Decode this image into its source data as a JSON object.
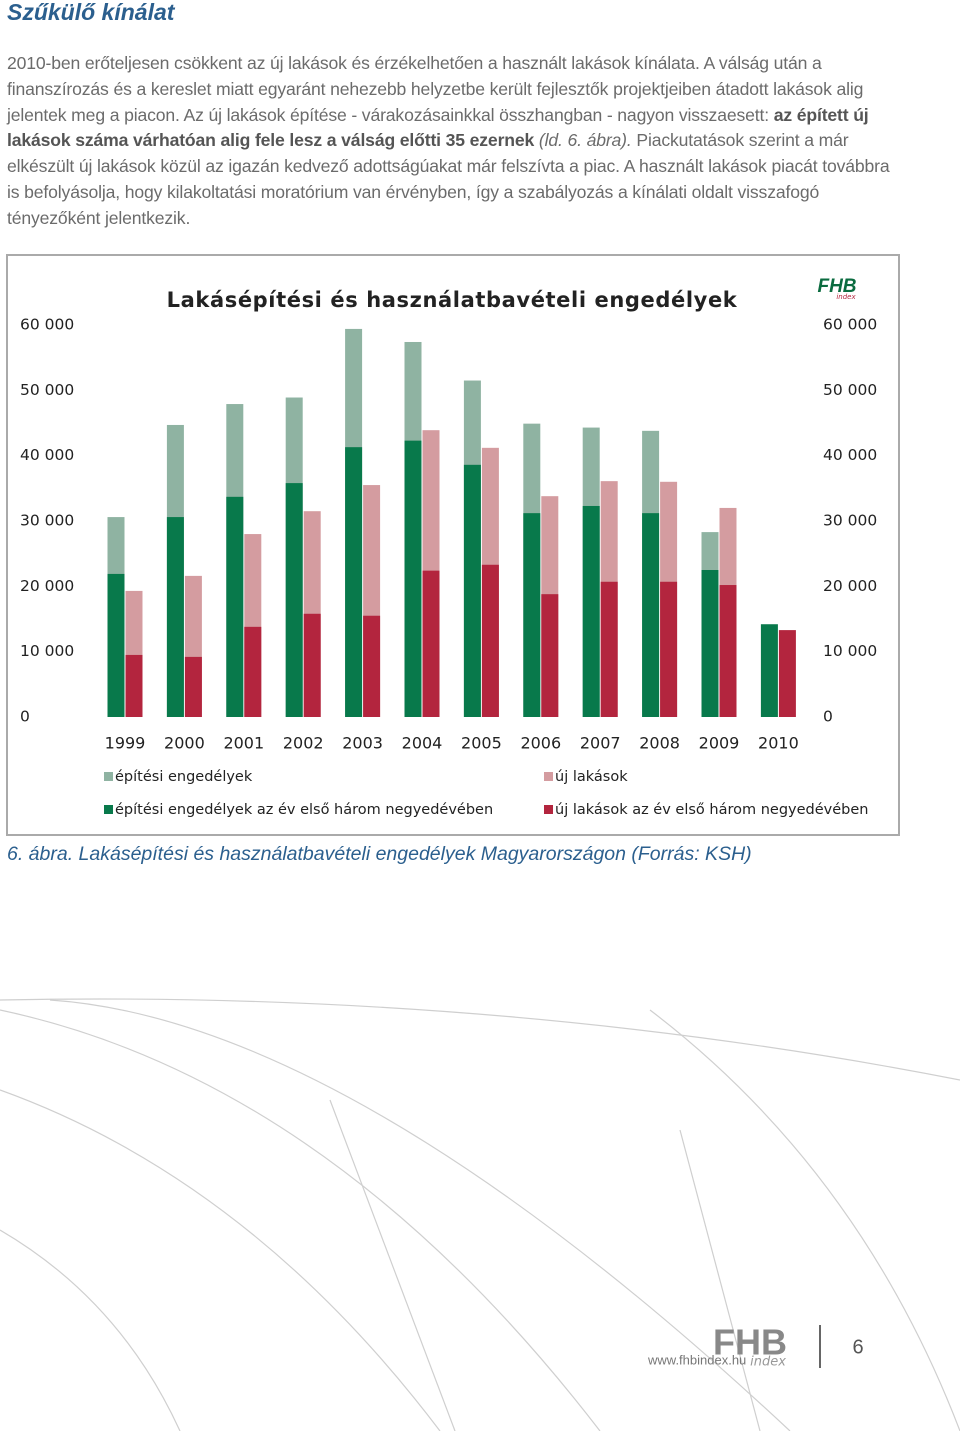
{
  "heading": "Szűkülő kínálat",
  "paragraph": [
    "2010-ben erőteljesen csökkent az új lakások és érzékelhetően a használt lakások kínálata. A válság után a finanszírozás és a kereslet miatt egyaránt nehezebb helyzetbe került fejlesztők projektjeiben átadott lakások alig jelentek meg a piacon. Az új lakások építése - várakozásainkkal összhangban - nagyon visszaesett: ",
    "az épített új lakások száma várhatóan alig fele lesz a válság előtti 35 ezernek",
    " (ld. 6. ábra).",
    " Piackutatások szerint a már elkészült új lakások közül az igazán kedvező adottságúakat már felszívta a piac. A használt lakások piacát továbbra is befolyásolja, hogy kilakoltatási moratórium van érvényben, így a szabályozás a kínálati oldalt visszafogó tényezőként jelentkezik."
  ],
  "chart_data": {
    "type": "bar",
    "title": "Lakásépítési és használatbavételi engedélyek",
    "logo": {
      "name": "FHB",
      "sub": "index"
    },
    "categories": [
      "1999",
      "2000",
      "2001",
      "2002",
      "2003",
      "2004",
      "2005",
      "2006",
      "2007",
      "2008",
      "2009",
      "2010"
    ],
    "series": [
      {
        "name": "építési engedélyek",
        "color": "#8fb3a2",
        "values": [
          30600,
          44700,
          47900,
          48900,
          59400,
          57400,
          51500,
          44900,
          44300,
          43800,
          28300,
          null
        ]
      },
      {
        "name": "építési engedélyek az év első három negyedévében",
        "color": "#08794b",
        "values": [
          21900,
          30600,
          33700,
          35800,
          41300,
          42300,
          38600,
          31200,
          32300,
          31200,
          22500,
          14200
        ]
      },
      {
        "name": "új lakások",
        "color": "#d49ca0",
        "values": [
          19300,
          21600,
          28000,
          31500,
          35500,
          43900,
          41200,
          33800,
          36100,
          36000,
          32000,
          null
        ]
      },
      {
        "name": "új lakások az év első három negyedévében",
        "color": "#b3253e",
        "values": [
          9500,
          9200,
          13800,
          15800,
          15500,
          22400,
          23300,
          18800,
          20700,
          20700,
          20200,
          13300
        ]
      }
    ],
    "ylim": [
      0,
      60000
    ],
    "yticks": [
      0,
      {
        "value": 10000,
        "label": "10 000"
      },
      {
        "value": 20000,
        "label": "20 000"
      },
      {
        "value": 30000,
        "label": "30 000"
      },
      {
        "value": 40000,
        "label": "40 000"
      },
      {
        "value": 50000,
        "label": "50 000"
      },
      {
        "value": 60000,
        "label": "60 000"
      }
    ],
    "grid": false
  },
  "caption": "6. ábra. Lakásépítési és használatbavételi engedélyek Magyarországon (Forrás: KSH)",
  "footer": {
    "url": "www.fhbindex.hu",
    "logo": "FHB",
    "logo_sub": "index",
    "page": "6"
  }
}
